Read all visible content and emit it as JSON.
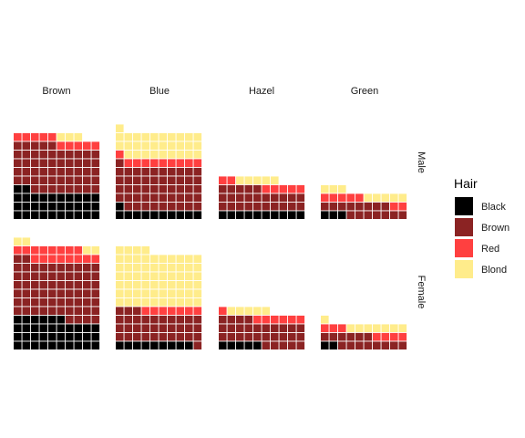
{
  "chart_data": {
    "type": "waffle",
    "unit_note": "",
    "column_facets": [
      "Brown",
      "Blue",
      "Hazel",
      "Green"
    ],
    "row_facets": [
      "Male",
      "Female"
    ],
    "legend": {
      "title": "Hair",
      "entries": [
        {
          "name": "Black",
          "color": "#000000"
        },
        {
          "name": "Brown",
          "color": "#8B2323"
        },
        {
          "name": "Red",
          "color": "#FF4040"
        },
        {
          "name": "Blond",
          "color": "#FFEC8B"
        }
      ]
    },
    "panels": [
      {
        "row": "Male",
        "col": "Brown",
        "counts": {
          "Black": 32,
          "Brown": 53,
          "Red": 10,
          "Blond": 3
        }
      },
      {
        "row": "Male",
        "col": "Blue",
        "counts": {
          "Black": 11,
          "Brown": 50,
          "Red": 10,
          "Blond": 30
        }
      },
      {
        "row": "Male",
        "col": "Hazel",
        "counts": {
          "Black": 10,
          "Brown": 25,
          "Red": 7,
          "Blond": 5
        }
      },
      {
        "row": "Male",
        "col": "Green",
        "counts": {
          "Black": 3,
          "Brown": 15,
          "Red": 7,
          "Blond": 8
        }
      },
      {
        "row": "Female",
        "col": "Brown",
        "counts": {
          "Black": 36,
          "Brown": 66,
          "Red": 16,
          "Blond": 4
        }
      },
      {
        "row": "Female",
        "col": "Blue",
        "counts": {
          "Black": 9,
          "Brown": 34,
          "Red": 7,
          "Blond": 64
        }
      },
      {
        "row": "Female",
        "col": "Hazel",
        "counts": {
          "Black": 5,
          "Brown": 29,
          "Red": 7,
          "Blond": 5
        }
      },
      {
        "row": "Female",
        "col": "Green",
        "counts": {
          "Black": 2,
          "Brown": 14,
          "Red": 7,
          "Blond": 8
        }
      }
    ]
  }
}
